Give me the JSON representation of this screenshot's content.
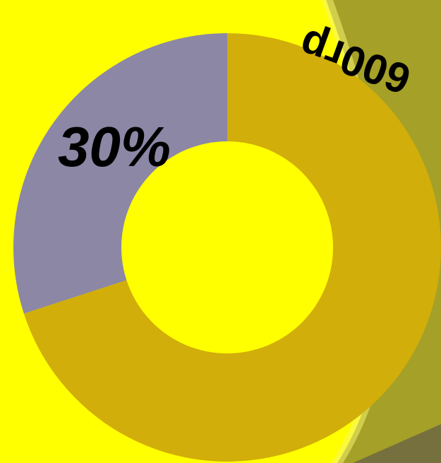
{
  "chart_data": {
    "type": "pie",
    "variant": "donut",
    "slices": [
      {
        "value": 70,
        "color": "#d1ae0a"
      },
      {
        "value": 30,
        "label": "30%",
        "color": "#8c87a5"
      }
    ],
    "title": "",
    "legend": "none"
  },
  "weight_label": "600гр",
  "colors": {
    "background": "#ffff00",
    "bowl": "#a5a027",
    "bowl_shadow": "#76703f",
    "donut_hole": "#ffff00"
  }
}
